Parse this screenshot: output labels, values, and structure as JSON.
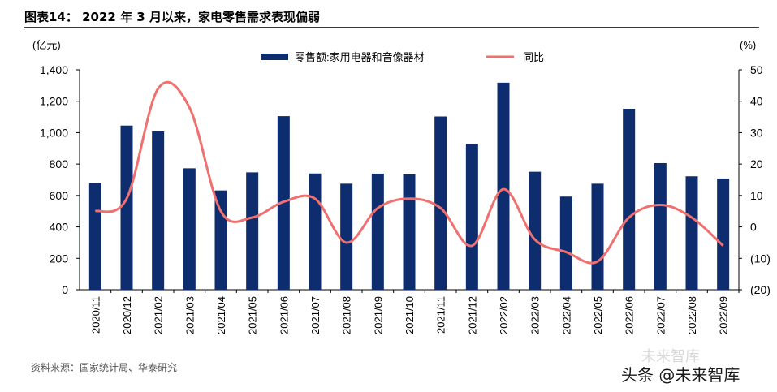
{
  "header": {
    "title": "图表14： 2022 年 3 月以来，家电零售需求表现偏弱"
  },
  "footer": {
    "source": "资料来源：国家统计局、华泰研究",
    "watermark": "头条 @未来智库",
    "watermark_faint": "未来智库"
  },
  "chart_data": {
    "type": "bar+line",
    "categories": [
      "2020/11",
      "2020/12",
      "2021/02",
      "2021/03",
      "2021/04",
      "2021/05",
      "2021/06",
      "2021/07",
      "2021/08",
      "2021/09",
      "2021/10",
      "2021/11",
      "2021/12",
      "2022/02",
      "2022/03",
      "2022/04",
      "2022/05",
      "2022/06",
      "2022/07",
      "2022/08",
      "2022/09"
    ],
    "series": [
      {
        "name": "零售额:家用电器和音像器材",
        "type": "bar",
        "axis": "left",
        "color": "#0d2d6e",
        "values": [
          680,
          1045,
          1008,
          773,
          632,
          747,
          1105,
          740,
          675,
          739,
          735,
          1103,
          930,
          1318,
          751,
          593,
          675,
          1152,
          806,
          722,
          708
        ]
      },
      {
        "name": "同比",
        "type": "line",
        "axis": "right",
        "color": "#f07070",
        "values": [
          5,
          9,
          44,
          38,
          5,
          3,
          8,
          9,
          -5,
          6,
          9,
          6,
          -6,
          12,
          -4,
          -8,
          -11,
          3,
          7,
          3,
          -6
        ]
      }
    ],
    "yaxis_left": {
      "unit": "(亿元)",
      "range": [
        0,
        1400
      ],
      "ticks": [
        0,
        200,
        400,
        600,
        800,
        1000,
        1200,
        1400
      ],
      "tick_labels": [
        "0",
        "200",
        "400",
        "600",
        "800",
        "1,000",
        "1,200",
        "1,400"
      ]
    },
    "yaxis_right": {
      "unit": "(%)",
      "range": [
        -20,
        50
      ],
      "ticks": [
        -20,
        -10,
        0,
        10,
        20,
        30,
        40,
        50
      ],
      "tick_labels": [
        "(20)",
        "(10)",
        "0",
        "10",
        "20",
        "30",
        "40",
        "50"
      ]
    },
    "legend_position": "top-center",
    "grid": false
  }
}
